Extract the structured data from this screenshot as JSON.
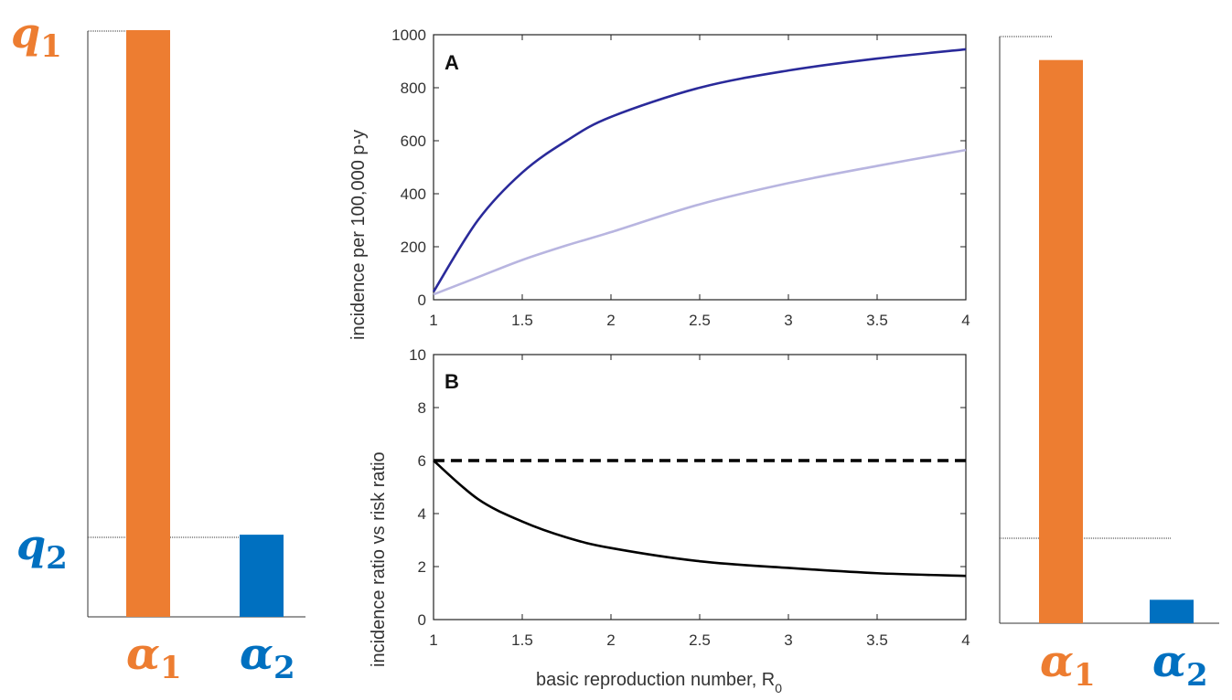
{
  "colors": {
    "orange": "#ED7D31",
    "blue": "#0070C0",
    "dark_navy": "#2A2A9A",
    "light_lavender": "#B8B5E0",
    "black": "#000000"
  },
  "left_bars": {
    "top_label": {
      "letter": "q",
      "sub": "1"
    },
    "mid_label": {
      "letter": "q",
      "sub": "2"
    },
    "categories": [
      {
        "letter": "α",
        "sub": "1"
      },
      {
        "letter": "α",
        "sub": "2"
      }
    ]
  },
  "right_bars": {
    "categories": [
      {
        "letter": "α",
        "sub": "1"
      },
      {
        "letter": "α",
        "sub": "2"
      }
    ]
  },
  "center": {
    "panel_a_letter": "A",
    "panel_b_letter": "B",
    "ylabel_a": "incidence per 100,000 p-y",
    "ylabel_b": "incidence ratio vs risk ratio",
    "xlabel_main": "basic reproduction number, R",
    "xlabel_sub": "0"
  },
  "chart_data": [
    {
      "type": "bar",
      "categories": [
        "α1",
        "α2"
      ],
      "values": [
        1.0,
        0.14
      ],
      "reference_levels": [
        1.0,
        0.14
      ],
      "reference_labels": [
        "q1",
        "q2"
      ],
      "ylim": [
        0,
        1.0
      ],
      "colors": [
        "#ED7D31",
        "#0070C0"
      ]
    },
    {
      "type": "line",
      "panel": "A",
      "title": "",
      "xlabel": "",
      "ylabel": "incidence per 100,000 p-y",
      "xlim": [
        1,
        4
      ],
      "ylim": [
        0,
        1000
      ],
      "xticks": [
        1,
        1.5,
        2,
        2.5,
        3,
        3.5,
        4
      ],
      "yticks": [
        0,
        200,
        400,
        600,
        800,
        1000
      ],
      "x": [
        1,
        1.25,
        1.5,
        1.75,
        2,
        2.5,
        3,
        3.5,
        4
      ],
      "series": [
        {
          "color": "#2A2A9A",
          "values": [
            30,
            300,
            480,
            600,
            690,
            800,
            865,
            910,
            945
          ]
        },
        {
          "color": "#B8B5E0",
          "values": [
            20,
            85,
            150,
            205,
            255,
            360,
            440,
            505,
            565
          ]
        }
      ]
    },
    {
      "type": "line",
      "panel": "B",
      "title": "",
      "xlabel": "basic reproduction number, R0",
      "ylabel": "incidence ratio vs risk ratio",
      "xlim": [
        1,
        4
      ],
      "ylim": [
        0,
        10
      ],
      "xticks": [
        1,
        1.5,
        2,
        2.5,
        3,
        3.5,
        4
      ],
      "yticks": [
        0,
        2,
        4,
        6,
        8,
        10
      ],
      "x": [
        1,
        1.25,
        1.5,
        1.75,
        2,
        2.5,
        3,
        3.5,
        4
      ],
      "series": [
        {
          "color": "#000000",
          "style": "dashed",
          "values": [
            6,
            6,
            6,
            6,
            6,
            6,
            6,
            6,
            6
          ]
        },
        {
          "color": "#000000",
          "style": "solid",
          "values": [
            6.0,
            4.55,
            3.7,
            3.1,
            2.7,
            2.2,
            1.95,
            1.75,
            1.65
          ]
        }
      ]
    },
    {
      "type": "bar",
      "categories": [
        "α1",
        "α2"
      ],
      "values": [
        0.96,
        0.04
      ],
      "reference_levels": [
        1.0,
        0.14
      ],
      "ylim": [
        0,
        1.0
      ],
      "colors": [
        "#ED7D31",
        "#0070C0"
      ]
    }
  ]
}
